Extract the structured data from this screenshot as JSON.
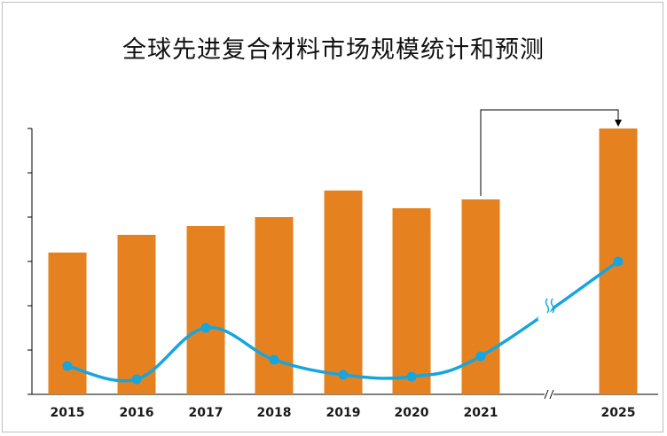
{
  "chart_data": {
    "type": "bar",
    "title": "全球先进复合材料市场规模统计和预测",
    "categories": [
      "2015",
      "2016",
      "2017",
      "2018",
      "2019",
      "2020",
      "2021",
      "2025"
    ],
    "series": [
      {
        "type": "bar",
        "values": [
          160,
          180,
          190,
          200,
          230,
          210,
          220,
          300
        ]
      },
      {
        "type": "line",
        "values": [
          32,
          17,
          75,
          39,
          22,
          20,
          43,
          150
        ]
      }
    ],
    "ylim": [
      0,
      300
    ],
    "y_ticks": 6,
    "axis_break_between": [
      "2021",
      "2025"
    ],
    "grid": false,
    "colors": {
      "bar": "#E5821F",
      "line": "#17A5DE",
      "axis": "#000000"
    }
  }
}
